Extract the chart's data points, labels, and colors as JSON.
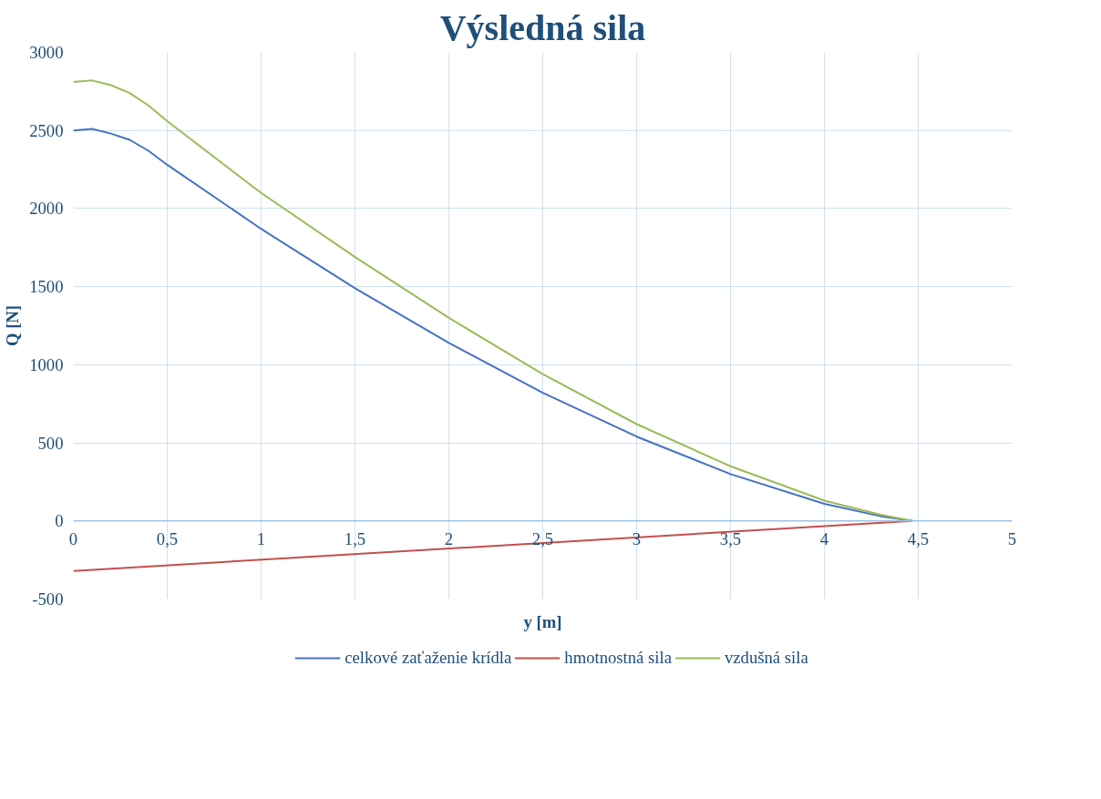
{
  "chart_data": {
    "type": "line",
    "title": "Výsledná sila",
    "xlabel": "y [m]",
    "ylabel": "Q [N]",
    "xlim": [
      0,
      5
    ],
    "ylim": [
      -500,
      3000
    ],
    "xticks": [
      0,
      {
        "value": 0.5,
        "label": "0,5"
      },
      1,
      {
        "value": 1.5,
        "label": "1,5"
      },
      2,
      {
        "value": 2.5,
        "label": "2,5"
      },
      3,
      {
        "value": 3.5,
        "label": "3,5"
      },
      4,
      {
        "value": 4.5,
        "label": "4,5"
      },
      5
    ],
    "yticks": [
      -500,
      0,
      500,
      1000,
      1500,
      2000,
      2500,
      3000
    ],
    "grid": true,
    "legend": "bottom",
    "marker": "none",
    "line_style": "solid",
    "series": [
      {
        "name": "celkové zaťaženie krídla",
        "color": "#4472c4",
        "x": [
          0,
          0.1,
          0.2,
          0.3,
          0.4,
          0.5,
          1,
          1.5,
          2,
          2.5,
          3,
          3.5,
          4,
          4.3,
          4.47
        ],
        "values": [
          2500,
          2510,
          2480,
          2440,
          2370,
          2280,
          1870,
          1490,
          1140,
          820,
          540,
          300,
          110,
          30,
          0
        ]
      },
      {
        "name": "hmotnostná sila",
        "color": "#c0504d",
        "x": [
          0,
          4.47
        ],
        "values": [
          -320,
          0
        ]
      },
      {
        "name": "vzdušná sila",
        "color": "#9bbb59",
        "x": [
          0,
          0.1,
          0.2,
          0.3,
          0.4,
          0.5,
          1,
          1.5,
          2,
          2.5,
          3,
          3.5,
          4,
          4.3,
          4.47
        ],
        "values": [
          2810,
          2820,
          2790,
          2740,
          2660,
          2560,
          2100,
          1690,
          1300,
          940,
          620,
          350,
          130,
          40,
          0
        ]
      }
    ]
  }
}
